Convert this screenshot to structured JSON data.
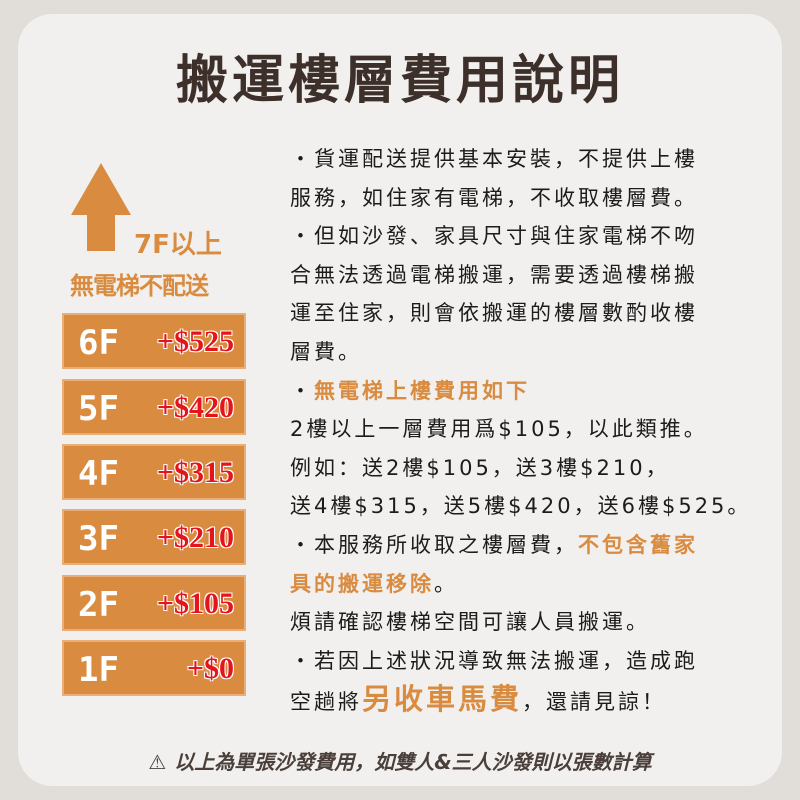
{
  "title": "搬運樓層費用說明",
  "left": {
    "up_label": "7F以上",
    "no_elevator": "無電梯不配送",
    "floors": [
      {
        "floor": "6F",
        "price": "+$525"
      },
      {
        "floor": "5F",
        "price": "+$420"
      },
      {
        "floor": "4F",
        "price": "+$315"
      },
      {
        "floor": "3F",
        "price": "+$210"
      },
      {
        "floor": "2F",
        "price": "+$105"
      },
      {
        "floor": "1F",
        "price": "+$0"
      }
    ]
  },
  "text": {
    "l0": "・貨運配送提供基本安裝，不提供上樓",
    "l1": "服務，如住家有電梯，不收取樓層費。",
    "l2": "・但如沙發、家具尺寸與住家電梯不吻",
    "l3": "合無法透過電梯搬運，需要透過樓梯搬",
    "l4": "運至住家，則會依搬運的樓層數酌收樓",
    "l5": "層費。",
    "l6a": "・",
    "l6b": "無電梯上樓費用如下",
    "l7": "2樓以上一層費用爲$105，以此類推。",
    "l8": "例如：送2樓$105，送3樓$210，",
    "l9": "送4樓$315，送5樓$420，送6樓$525。",
    "l10a": "・本服務所收取之樓層費，",
    "l10b": "不包含舊家",
    "l11a": "具的搬運移除",
    "l11b": "。",
    "l12": "煩請確認樓梯空間可讓人員搬運。",
    "l13": "・若因上述狀況導致無法搬運，造成跑",
    "l14a": "空趟將",
    "l14b": "另收車馬費",
    "l14c": "，還請見諒！"
  },
  "footer": {
    "icon": "warning-icon",
    "text": "以上為單張沙發費用，如雙人&三人沙發則以張數計算"
  },
  "colors": {
    "accent": "#d98b40",
    "price": "#e3141b",
    "title": "#3d302a"
  }
}
